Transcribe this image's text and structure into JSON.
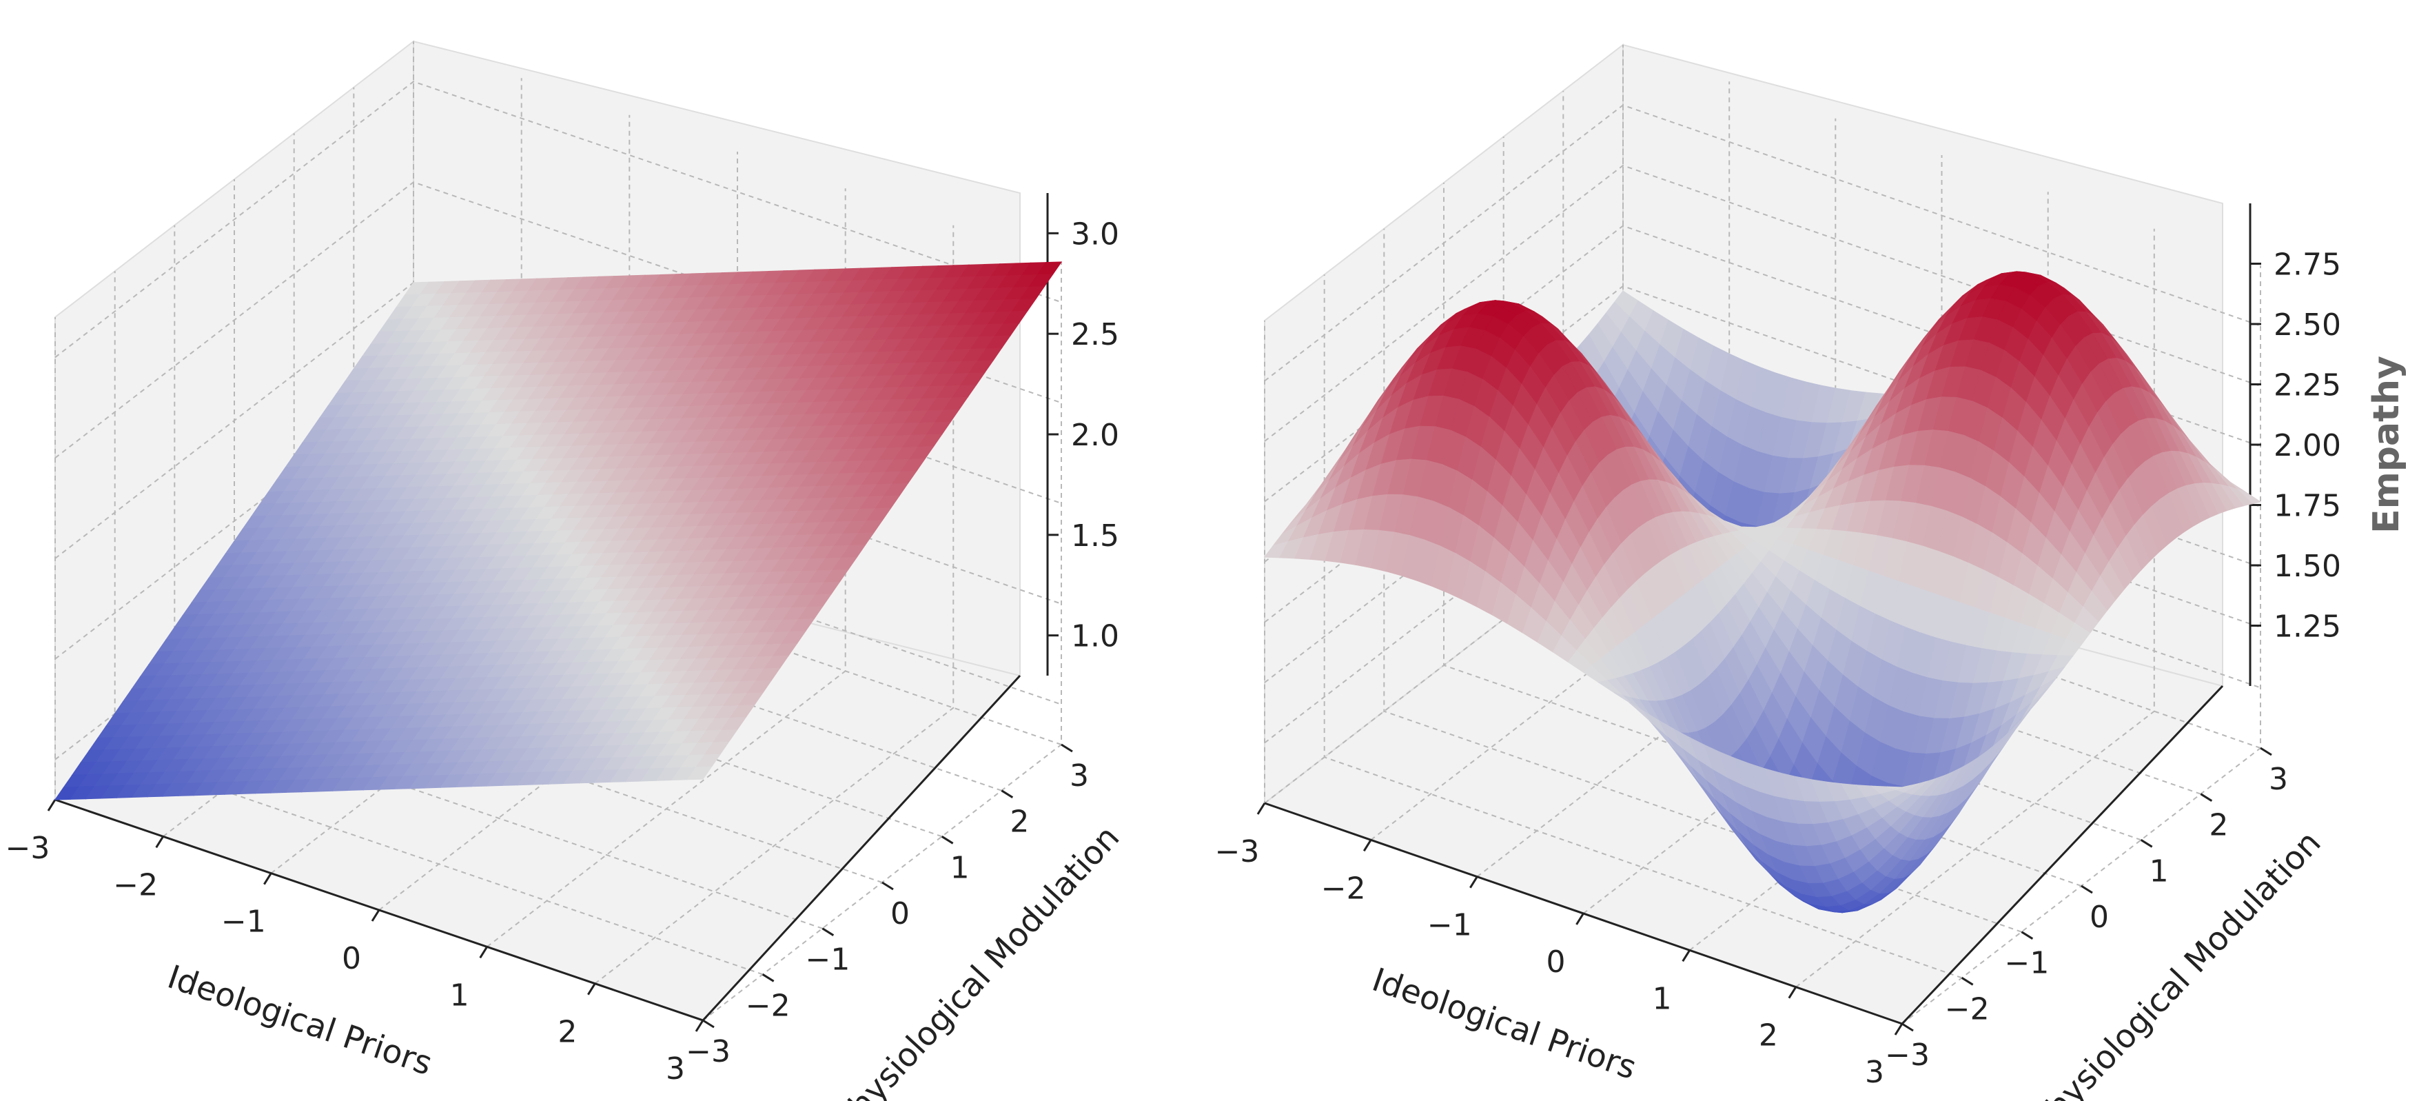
{
  "figure": {
    "panel_count": 2
  },
  "chart_data": [
    {
      "type": "surface",
      "title": "",
      "xlabel": "Ideological Priors",
      "ylabel": "Physiological Modulation",
      "zlabel": "",
      "xlim": [
        -3,
        3
      ],
      "ylim": [
        -3,
        3
      ],
      "zlim": [
        0.8,
        3.2
      ],
      "x_ticks": [
        "−3",
        "−2",
        "−1",
        "0",
        "1",
        "2",
        "3"
      ],
      "y_ticks": [
        "−3",
        "−2",
        "−1",
        "0",
        "1",
        "2",
        "3"
      ],
      "z_ticks": [
        "1.0",
        "1.5",
        "2.0",
        "2.5",
        "3.0"
      ],
      "surface": {
        "function": "z = 2 + 0.2*x + 0.2*y",
        "x_range": [
          -3,
          3
        ],
        "y_range": [
          -3,
          3
        ],
        "z_min": 0.8,
        "z_max": 3.2
      },
      "colormap": {
        "name": "coolwarm",
        "low": "#3b4cc0",
        "mid": "#dddddd",
        "high": "#b40426"
      },
      "pane_color": "#f2f2f2",
      "grid": true
    },
    {
      "type": "surface",
      "title": "",
      "xlabel": "Ideological Priors",
      "ylabel": "Physiological Modulation",
      "zlabel": "Empathy",
      "xlim": [
        -3,
        3
      ],
      "ylim": [
        -3,
        3
      ],
      "zlim": [
        1.0,
        3.0
      ],
      "x_ticks": [
        "−3",
        "−2",
        "−1",
        "0",
        "1",
        "2",
        "3"
      ],
      "y_ticks": [
        "−3",
        "−2",
        "−1",
        "0",
        "1",
        "2",
        "3"
      ],
      "z_ticks": [
        "1.25",
        "1.50",
        "1.75",
        "2.00",
        "2.25",
        "2.50",
        "2.75"
      ],
      "surface": {
        "function": "z = 2 + sin(x)*sin(y)",
        "x_range": [
          -3,
          3
        ],
        "y_range": [
          -3,
          3
        ],
        "z_min": 1.0,
        "z_max": 3.0
      },
      "colormap": {
        "name": "coolwarm",
        "low": "#3b4cc0",
        "mid": "#dddddd",
        "high": "#b40426"
      },
      "pane_color": "#f2f2f2",
      "grid": true
    }
  ]
}
